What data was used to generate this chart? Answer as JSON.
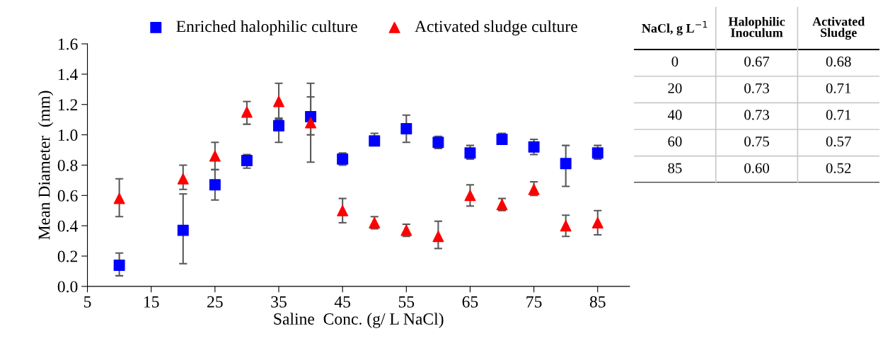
{
  "chart_data": [
    {
      "type": "scatter",
      "xlabel": "Saline  Conc. (g/ L NaCl)",
      "ylabel": "Mean Diameter  (mm)",
      "x": [
        10,
        20,
        25,
        30,
        35,
        40,
        45,
        50,
        55,
        60,
        65,
        70,
        75,
        80,
        85
      ],
      "xlim": [
        5,
        90
      ],
      "xticks": [
        5,
        15,
        25,
        35,
        45,
        55,
        65,
        75,
        85
      ],
      "ylim": [
        0,
        1.6
      ],
      "yticks": [
        {
          "value": 0,
          "label": "0.0"
        },
        {
          "value": 0.2,
          "label": "0.2"
        },
        {
          "value": 0.4,
          "label": "0.4"
        },
        {
          "value": 0.6,
          "label": "0.6"
        },
        {
          "value": 0.8,
          "label": "0.8"
        },
        {
          "value": 1.0,
          "label": "1.0"
        },
        {
          "value": 1.2,
          "label": "1.2"
        },
        {
          "value": 1.4,
          "label": "1.4"
        },
        {
          "value": 1.6,
          "label": "1.6"
        }
      ],
      "grid": false,
      "legend": "top",
      "series": [
        {
          "name": "Enriched halophilic culture",
          "color": "#0000ff",
          "marker": "square",
          "values": [
            0.14,
            0.37,
            0.67,
            0.83,
            1.06,
            1.12,
            0.84,
            0.96,
            1.04,
            0.95,
            0.88,
            0.97,
            0.92,
            0.81,
            0.88
          ],
          "errors": [
            [
              0.07,
              0.22
            ],
            [
              0.15,
              0.61
            ],
            [
              0.57,
              0.77
            ],
            [
              0.78,
              0.87
            ],
            [
              0.95,
              1.11
            ],
            [
              1.0,
              1.25
            ],
            [
              0.8,
              0.88
            ],
            [
              0.93,
              1.01
            ],
            [
              0.95,
              1.13
            ],
            [
              0.91,
              0.99
            ],
            [
              0.84,
              0.93
            ],
            [
              0.94,
              1.01
            ],
            [
              0.87,
              0.97
            ],
            [
              0.66,
              0.93
            ],
            [
              0.84,
              0.93
            ]
          ]
        },
        {
          "name": "Activated sludge culture",
          "color": "#ff0000",
          "marker": "triangle",
          "values": [
            0.58,
            0.71,
            0.86,
            1.15,
            1.22,
            1.08,
            0.5,
            0.42,
            0.37,
            0.33,
            0.6,
            0.54,
            0.64,
            0.4,
            0.42
          ],
          "errors": [
            [
              0.46,
              0.71
            ],
            [
              0.64,
              0.8
            ],
            [
              0.77,
              0.95
            ],
            [
              1.07,
              1.22
            ],
            [
              1.1,
              1.34
            ],
            [
              0.82,
              1.34
            ],
            [
              0.42,
              0.58
            ],
            [
              0.38,
              0.46
            ],
            [
              0.33,
              0.41
            ],
            [
              0.25,
              0.43
            ],
            [
              0.53,
              0.67
            ],
            [
              0.5,
              0.58
            ],
            [
              0.6,
              0.69
            ],
            [
              0.33,
              0.47
            ],
            [
              0.34,
              0.5
            ]
          ]
        }
      ]
    },
    {
      "type": "other",
      "categories": [
        "NaCl, g L$^{−1}$",
        "Halophilic Inoculum",
        "Activated Sludge"
      ],
      "cell_labels": [
        [
          "0",
          "0.67",
          "0.68"
        ],
        [
          "20",
          "0.73",
          "0.71"
        ],
        [
          "40",
          "0.73",
          "0.71"
        ],
        [
          "60",
          "0.75",
          "0.57"
        ],
        [
          "85",
          "0.60",
          "0.52"
        ]
      ]
    }
  ]
}
